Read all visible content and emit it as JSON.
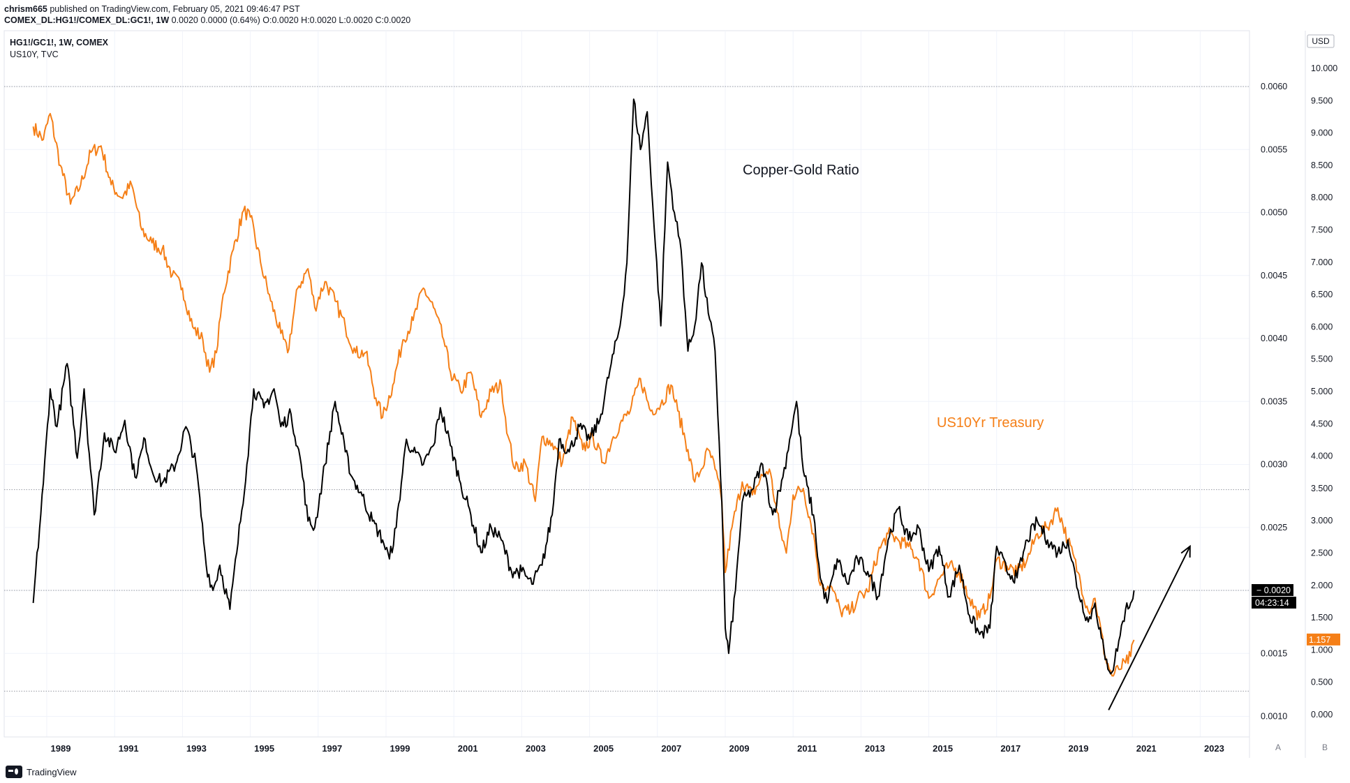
{
  "header": {
    "author": "chrism665",
    "published": " published on TradingView.com, February 05, 2021 09:46:47 PST",
    "symbol": "COMEX_DL:HG1!/COMEX_DL:GC1!, 1W",
    "ohlc": " 0.0020 0.0000 (0.64%) O:0.0020 H:0.0020 L:0.0020 C:0.0020"
  },
  "legend": {
    "main": "HG1!/GC1!, 1W, COMEX",
    "overlay": "US10Y, TVC"
  },
  "annotations": {
    "copper_gold": "Copper-Gold Ratio",
    "us10yr": "US10Yr Treasury"
  },
  "scale_buttons": {
    "currency": "USD",
    "auto": "A",
    "mode": "B"
  },
  "price_labels": {
    "last_ratio": "0.0020",
    "countdown": "04:23:14",
    "last_yield": "1.157"
  },
  "footer": {
    "brand": "TradingView"
  },
  "colors": {
    "ratio": "#000000",
    "yield": "#f57f17",
    "grid": "#f0f3fa",
    "hline": "#9598a1"
  },
  "chart_data": {
    "type": "line",
    "x_ticks": [
      "1989",
      "1991",
      "1993",
      "1995",
      "1997",
      "1999",
      "2001",
      "2003",
      "2005",
      "2007",
      "2009",
      "2011",
      "2013",
      "2015",
      "2017",
      "2019",
      "2021",
      "2023"
    ],
    "x_range": [
      1988.4,
      2024.3
    ],
    "y_left_ticks": [
      "0.0060",
      "0.0055",
      "0.0050",
      "0.0045",
      "0.0040",
      "0.0035",
      "0.0030",
      "0.0025",
      "0.0020",
      "0.0015",
      "0.0010"
    ],
    "y_left_range": [
      0.001,
      0.006
    ],
    "y_right_ticks": [
      "10.000",
      "9.500",
      "9.000",
      "8.500",
      "8.000",
      "7.500",
      "7.000",
      "6.500",
      "6.000",
      "5.500",
      "5.000",
      "4.500",
      "4.000",
      "3.500",
      "3.000",
      "2.500",
      "2.000",
      "1.500",
      "1.000",
      "0.500",
      "0.000"
    ],
    "y_right_range": [
      0.0,
      10.0
    ],
    "horizontal_levels": [
      0.006,
      0.0028,
      0.002,
      0.0012
    ],
    "series": [
      {
        "name": "Copper-Gold Ratio",
        "axis": "left",
        "points": [
          [
            1988.6,
            0.0019
          ],
          [
            1988.9,
            0.00285
          ],
          [
            1989.1,
            0.0036
          ],
          [
            1989.3,
            0.0033
          ],
          [
            1989.6,
            0.0038
          ],
          [
            1989.9,
            0.00305
          ],
          [
            1990.1,
            0.0036
          ],
          [
            1990.4,
            0.0026
          ],
          [
            1990.7,
            0.00325
          ],
          [
            1991.0,
            0.0031
          ],
          [
            1991.3,
            0.00335
          ],
          [
            1991.6,
            0.0029
          ],
          [
            1991.9,
            0.0032
          ],
          [
            1992.1,
            0.00295
          ],
          [
            1992.4,
            0.00285
          ],
          [
            1992.8,
            0.003
          ],
          [
            1993.1,
            0.0033
          ],
          [
            1993.4,
            0.003
          ],
          [
            1993.7,
            0.0022
          ],
          [
            1993.9,
            0.002
          ],
          [
            1994.1,
            0.0022
          ],
          [
            1994.4,
            0.00185
          ],
          [
            1994.6,
            0.0023
          ],
          [
            1994.9,
            0.003
          ],
          [
            1995.1,
            0.0036
          ],
          [
            1995.4,
            0.00345
          ],
          [
            1995.7,
            0.0036
          ],
          [
            1995.9,
            0.0033
          ],
          [
            1996.2,
            0.0034
          ],
          [
            1996.5,
            0.003
          ],
          [
            1996.7,
            0.00255
          ],
          [
            1996.9,
            0.0025
          ],
          [
            1997.2,
            0.003
          ],
          [
            1997.5,
            0.0035
          ],
          [
            1997.8,
            0.0031
          ],
          [
            1998.0,
            0.0029
          ],
          [
            1998.3,
            0.00275
          ],
          [
            1998.6,
            0.00255
          ],
          [
            1998.9,
            0.0024
          ],
          [
            1999.1,
            0.00225
          ],
          [
            1999.3,
            0.0025
          ],
          [
            1999.6,
            0.0032
          ],
          [
            1999.8,
            0.0031
          ],
          [
            2000.1,
            0.003
          ],
          [
            2000.4,
            0.00315
          ],
          [
            2000.6,
            0.00345
          ],
          [
            2000.9,
            0.00315
          ],
          [
            2001.2,
            0.00285
          ],
          [
            2001.5,
            0.0026
          ],
          [
            2001.8,
            0.0023
          ],
          [
            2002.1,
            0.0025
          ],
          [
            2002.4,
            0.0024
          ],
          [
            2002.7,
            0.00215
          ],
          [
            2003.0,
            0.00215
          ],
          [
            2003.3,
            0.00205
          ],
          [
            2003.6,
            0.0022
          ],
          [
            2003.9,
            0.0026
          ],
          [
            2004.1,
            0.0032
          ],
          [
            2004.4,
            0.0031
          ],
          [
            2004.7,
            0.0033
          ],
          [
            2005.0,
            0.0032
          ],
          [
            2005.3,
            0.00335
          ],
          [
            2005.6,
            0.00375
          ],
          [
            2005.9,
            0.0041
          ],
          [
            2006.1,
            0.0046
          ],
          [
            2006.3,
            0.0059
          ],
          [
            2006.5,
            0.0055
          ],
          [
            2006.7,
            0.0058
          ],
          [
            2006.9,
            0.0049
          ],
          [
            2007.1,
            0.0041
          ],
          [
            2007.3,
            0.0054
          ],
          [
            2007.5,
            0.005
          ],
          [
            2007.7,
            0.0047
          ],
          [
            2007.9,
            0.0039
          ],
          [
            2008.1,
            0.0041
          ],
          [
            2008.3,
            0.0046
          ],
          [
            2008.5,
            0.0042
          ],
          [
            2008.7,
            0.0039
          ],
          [
            2008.9,
            0.0027
          ],
          [
            2009.0,
            0.0017
          ],
          [
            2009.1,
            0.0015
          ],
          [
            2009.3,
            0.002
          ],
          [
            2009.5,
            0.0027
          ],
          [
            2009.8,
            0.0028
          ],
          [
            2010.1,
            0.003
          ],
          [
            2010.4,
            0.0026
          ],
          [
            2010.7,
            0.0029
          ],
          [
            2010.9,
            0.0032
          ],
          [
            2011.1,
            0.0035
          ],
          [
            2011.3,
            0.00295
          ],
          [
            2011.6,
            0.0026
          ],
          [
            2011.8,
            0.0021
          ],
          [
            2012.0,
            0.0019
          ],
          [
            2012.3,
            0.00225
          ],
          [
            2012.6,
            0.00205
          ],
          [
            2012.9,
            0.00225
          ],
          [
            2013.2,
            0.00215
          ],
          [
            2013.5,
            0.00195
          ],
          [
            2013.8,
            0.0024
          ],
          [
            2014.1,
            0.00265
          ],
          [
            2014.4,
            0.0024
          ],
          [
            2014.7,
            0.0025
          ],
          [
            2015.0,
            0.00215
          ],
          [
            2015.3,
            0.00235
          ],
          [
            2015.6,
            0.00195
          ],
          [
            2015.9,
            0.0022
          ],
          [
            2016.2,
            0.0018
          ],
          [
            2016.5,
            0.00165
          ],
          [
            2016.8,
            0.0017
          ],
          [
            2017.0,
            0.00235
          ],
          [
            2017.3,
            0.00215
          ],
          [
            2017.6,
            0.0021
          ],
          [
            2017.9,
            0.0024
          ],
          [
            2018.2,
            0.00255
          ],
          [
            2018.5,
            0.0024
          ],
          [
            2018.8,
            0.0023
          ],
          [
            2019.1,
            0.0024
          ],
          [
            2019.4,
            0.002
          ],
          [
            2019.7,
            0.00175
          ],
          [
            2019.9,
            0.0019
          ],
          [
            2020.2,
            0.00145
          ],
          [
            2020.4,
            0.00135
          ],
          [
            2020.6,
            0.0016
          ],
          [
            2020.8,
            0.00185
          ],
          [
            2020.95,
            0.0019
          ],
          [
            2021.05,
            0.002
          ]
        ]
      },
      {
        "name": "US10Yr Treasury",
        "axis": "right",
        "points": [
          [
            1988.6,
            9.1
          ],
          [
            1988.9,
            8.9
          ],
          [
            1989.1,
            9.3
          ],
          [
            1989.4,
            8.5
          ],
          [
            1989.7,
            7.9
          ],
          [
            1990.0,
            8.2
          ],
          [
            1990.3,
            8.7
          ],
          [
            1990.6,
            8.8
          ],
          [
            1990.9,
            8.2
          ],
          [
            1991.2,
            8.0
          ],
          [
            1991.5,
            8.2
          ],
          [
            1991.8,
            7.5
          ],
          [
            1992.1,
            7.3
          ],
          [
            1992.4,
            7.2
          ],
          [
            1992.7,
            6.8
          ],
          [
            1993.0,
            6.6
          ],
          [
            1993.3,
            6.0
          ],
          [
            1993.6,
            5.8
          ],
          [
            1993.8,
            5.3
          ],
          [
            1994.0,
            5.6
          ],
          [
            1994.2,
            6.5
          ],
          [
            1994.5,
            7.2
          ],
          [
            1994.8,
            7.8
          ],
          [
            1995.0,
            7.7
          ],
          [
            1995.3,
            7.0
          ],
          [
            1995.6,
            6.4
          ],
          [
            1995.9,
            5.9
          ],
          [
            1996.1,
            5.6
          ],
          [
            1996.4,
            6.6
          ],
          [
            1996.7,
            6.9
          ],
          [
            1996.9,
            6.3
          ],
          [
            1997.2,
            6.7
          ],
          [
            1997.5,
            6.4
          ],
          [
            1997.8,
            6.0
          ],
          [
            1998.1,
            5.6
          ],
          [
            1998.4,
            5.6
          ],
          [
            1998.7,
            4.9
          ],
          [
            1998.9,
            4.6
          ],
          [
            1999.2,
            5.1
          ],
          [
            1999.5,
            5.8
          ],
          [
            1999.8,
            6.1
          ],
          [
            2000.1,
            6.6
          ],
          [
            2000.4,
            6.3
          ],
          [
            2000.7,
            5.8
          ],
          [
            2000.9,
            5.3
          ],
          [
            2001.2,
            5.0
          ],
          [
            2001.5,
            5.3
          ],
          [
            2001.8,
            4.6
          ],
          [
            2002.1,
            5.0
          ],
          [
            2002.4,
            5.1
          ],
          [
            2002.6,
            4.3
          ],
          [
            2002.8,
            3.8
          ],
          [
            2003.1,
            3.9
          ],
          [
            2003.4,
            3.3
          ],
          [
            2003.6,
            4.3
          ],
          [
            2003.9,
            4.2
          ],
          [
            2004.2,
            3.9
          ],
          [
            2004.5,
            4.6
          ],
          [
            2004.8,
            4.1
          ],
          [
            2005.1,
            4.3
          ],
          [
            2005.4,
            3.9
          ],
          [
            2005.7,
            4.3
          ],
          [
            2005.9,
            4.5
          ],
          [
            2006.2,
            4.7
          ],
          [
            2006.5,
            5.2
          ],
          [
            2006.8,
            4.7
          ],
          [
            2007.1,
            4.8
          ],
          [
            2007.4,
            5.1
          ],
          [
            2007.6,
            4.7
          ],
          [
            2007.9,
            4.1
          ],
          [
            2008.1,
            3.6
          ],
          [
            2008.3,
            3.8
          ],
          [
            2008.5,
            4.1
          ],
          [
            2008.7,
            3.8
          ],
          [
            2008.9,
            3.3
          ],
          [
            2009.0,
            2.2
          ],
          [
            2009.2,
            2.9
          ],
          [
            2009.5,
            3.6
          ],
          [
            2009.8,
            3.4
          ],
          [
            2010.1,
            3.7
          ],
          [
            2010.3,
            3.8
          ],
          [
            2010.6,
            2.9
          ],
          [
            2010.8,
            2.5
          ],
          [
            2011.0,
            3.4
          ],
          [
            2011.3,
            3.5
          ],
          [
            2011.6,
            2.8
          ],
          [
            2011.8,
            2.0
          ],
          [
            2012.1,
            2.0
          ],
          [
            2012.4,
            1.6
          ],
          [
            2012.7,
            1.6
          ],
          [
            2012.9,
            1.8
          ],
          [
            2013.2,
            1.9
          ],
          [
            2013.5,
            2.5
          ],
          [
            2013.8,
            2.8
          ],
          [
            2014.1,
            2.7
          ],
          [
            2014.4,
            2.6
          ],
          [
            2014.7,
            2.4
          ],
          [
            2015.0,
            1.8
          ],
          [
            2015.3,
            2.1
          ],
          [
            2015.6,
            2.3
          ],
          [
            2015.9,
            2.2
          ],
          [
            2016.2,
            1.8
          ],
          [
            2016.5,
            1.5
          ],
          [
            2016.8,
            1.8
          ],
          [
            2017.0,
            2.4
          ],
          [
            2017.3,
            2.3
          ],
          [
            2017.6,
            2.2
          ],
          [
            2017.9,
            2.4
          ],
          [
            2018.2,
            2.8
          ],
          [
            2018.5,
            2.9
          ],
          [
            2018.8,
            3.2
          ],
          [
            2019.1,
            2.7
          ],
          [
            2019.4,
            2.2
          ],
          [
            2019.7,
            1.6
          ],
          [
            2019.9,
            1.8
          ],
          [
            2020.2,
            0.9
          ],
          [
            2020.4,
            0.6
          ],
          [
            2020.6,
            0.7
          ],
          [
            2020.8,
            0.8
          ],
          [
            2020.95,
            0.9
          ],
          [
            2021.05,
            1.157
          ]
        ]
      }
    ],
    "arrow": {
      "from": [
        2020.3,
        0.00105
      ],
      "to": [
        2022.7,
        0.00235
      ]
    }
  }
}
